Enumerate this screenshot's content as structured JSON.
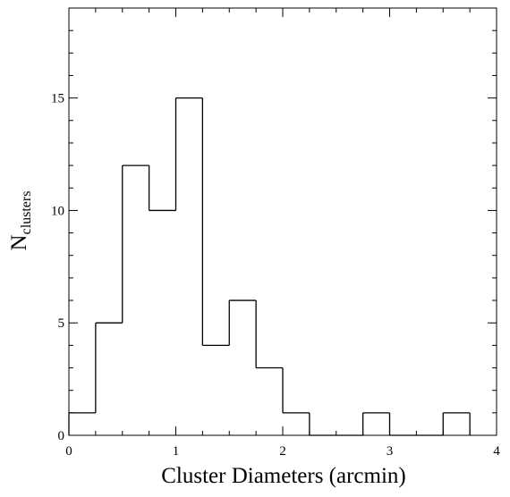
{
  "chart_data": {
    "type": "bar",
    "title": "",
    "xlabel": "Cluster Diameters (arcmin)",
    "ylabel": {
      "main": "N",
      "subscript": "clusters"
    },
    "xlim": [
      0,
      4
    ],
    "ylim": [
      0,
      19
    ],
    "x_ticks": [
      0,
      1,
      2,
      3,
      4
    ],
    "x_tick_labels": [
      "0",
      "1",
      "2",
      "3",
      "4"
    ],
    "y_ticks": [
      0,
      5,
      10,
      15
    ],
    "y_tick_labels": [
      "0",
      "5",
      "10",
      "15"
    ],
    "x_minor_step": 0.25,
    "y_minor_step": 1,
    "bin_width": 0.25,
    "bin_edges": [
      0,
      0.25,
      0.5,
      0.75,
      1.0,
      1.25,
      1.5,
      1.75,
      2.0,
      2.25,
      2.5,
      2.75,
      3.0,
      3.25,
      3.5,
      3.75
    ],
    "values": [
      1,
      5,
      12,
      10,
      15,
      4,
      6,
      3,
      1,
      0,
      0,
      1,
      0,
      0,
      1
    ],
    "style": "step",
    "grid": false,
    "line_color": "#000000"
  }
}
